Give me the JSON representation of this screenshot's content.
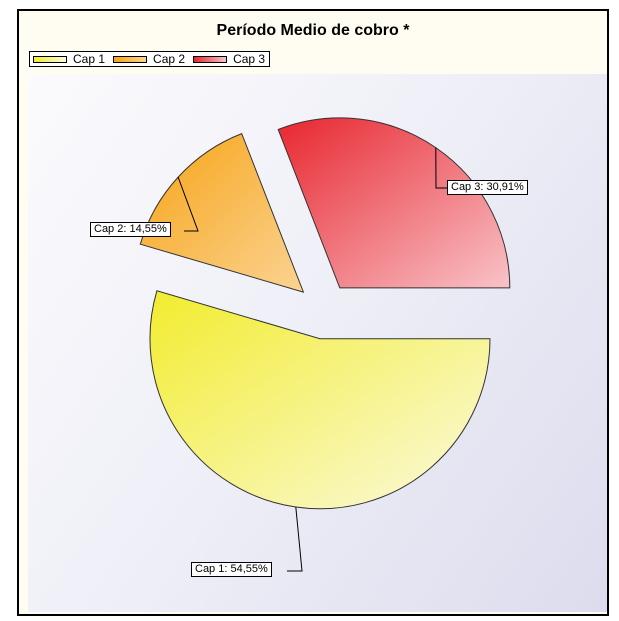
{
  "chart_data": {
    "type": "pie",
    "title": "Período Medio de cobro *",
    "legend_position": "top-left",
    "slices": [
      {
        "name": "Cap 1",
        "value": 54.55,
        "label": "Cap 1: 54,55%",
        "color_start": "#f2ec2e",
        "color_end": "#fbfadf"
      },
      {
        "name": "Cap 2",
        "value": 14.55,
        "label": "Cap 2: 14,55%",
        "color_start": "#f6a416",
        "color_end": "#fbd392"
      },
      {
        "name": "Cap 3",
        "value": 30.91,
        "label": "Cap 3: 30,91%",
        "color_start": "#e8262f",
        "color_end": "#f8c3c8"
      }
    ]
  },
  "colors": {
    "frame_background": "#fffdf2",
    "plot_gradient_start": "#fbfbfd",
    "plot_gradient_end": "#dcdcee"
  }
}
